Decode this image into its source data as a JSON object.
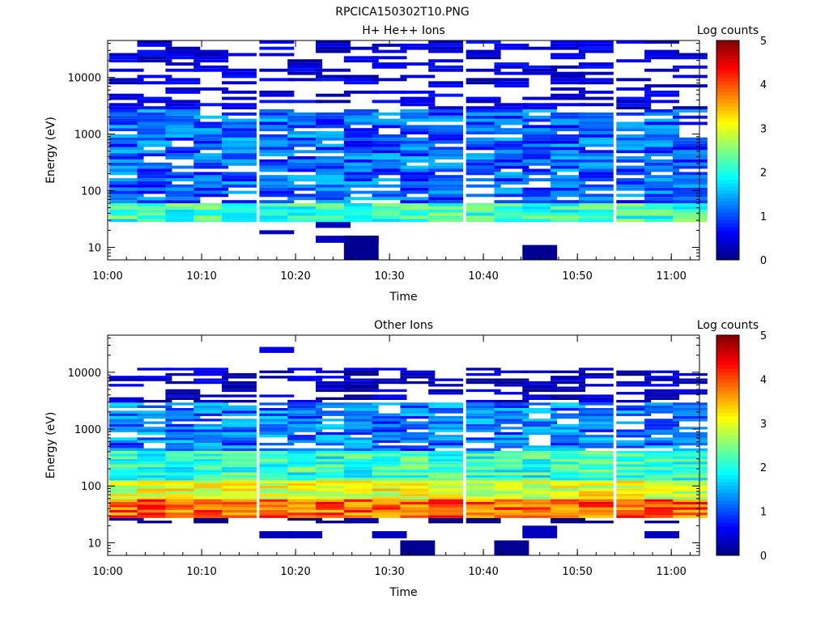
{
  "figure_title": "RPCICA150302T10.PNG",
  "colorscale": [
    "#00007f",
    "#0000ff",
    "#0080ff",
    "#00ffff",
    "#80ff80",
    "#ffff00",
    "#ff8000",
    "#ff0000",
    "#7f0000"
  ],
  "chart_data": [
    {
      "type": "heatmap",
      "title": "H+ He++ Ions",
      "xlabel": "Time",
      "ylabel": "Energy (eV)",
      "colorbar_label": "Log counts",
      "y_scale": "log",
      "xlim": [
        "10:00",
        "11:03"
      ],
      "ylim": [
        6,
        45000
      ],
      "x_ticks": [
        "10:00",
        "10:10",
        "10:20",
        "10:30",
        "10:40",
        "10:50",
        "11:00"
      ],
      "y_ticks": [
        "10",
        "100",
        "1000",
        "10000"
      ],
      "colorbar_range": [
        0,
        5
      ],
      "colorbar_ticks": [
        "0",
        "1",
        "2",
        "3",
        "4",
        "5"
      ],
      "time_bins": [
        "10:02",
        "10:05",
        "10:08",
        "10:11",
        "10:14",
        "10:18",
        "10:21",
        "10:24",
        "10:27",
        "10:30",
        "10:33",
        "10:36",
        "10:40",
        "10:43",
        "10:46",
        "10:49",
        "10:52",
        "10:56",
        "10:59",
        "11:02"
      ],
      "energy_range": [
        28,
        45000
      ],
      "profile": {
        "band_low": [
          28,
          60,
          2.2
        ],
        "band_mid": [
          60,
          2600,
          1.1
        ],
        "sparse_top": [
          2600,
          45000,
          0.45
        ]
      },
      "extra_low_cells": [
        {
          "time": "10:18",
          "e_low": 17,
          "e_high": 20,
          "value": 0.3
        },
        {
          "time": "10:24",
          "e_low": 22,
          "e_high": 28,
          "value": 0.3
        },
        {
          "time": "10:24",
          "e_low": 12,
          "e_high": 16,
          "value": 0.3
        },
        {
          "time": "10:27",
          "e_low": 12,
          "e_high": 16,
          "value": 0.3
        },
        {
          "time": "10:27",
          "e_low": 6,
          "e_high": 16,
          "value": 0.1
        },
        {
          "time": "10:46",
          "e_low": 6,
          "e_high": 11,
          "value": 0.1
        }
      ]
    },
    {
      "type": "heatmap",
      "title": "Other Ions",
      "xlabel": "Time",
      "ylabel": "Energy (eV)",
      "colorbar_label": "Log counts",
      "y_scale": "log",
      "xlim": [
        "10:00",
        "11:03"
      ],
      "ylim": [
        6,
        45000
      ],
      "x_ticks": [
        "10:00",
        "10:10",
        "10:20",
        "10:30",
        "10:40",
        "10:50",
        "11:00"
      ],
      "y_ticks": [
        "10",
        "100",
        "1000",
        "10000"
      ],
      "colorbar_range": [
        0,
        5
      ],
      "colorbar_ticks": [
        "0",
        "1",
        "2",
        "3",
        "4",
        "5"
      ],
      "time_bins": [
        "10:02",
        "10:05",
        "10:08",
        "10:11",
        "10:14",
        "10:18",
        "10:21",
        "10:24",
        "10:27",
        "10:30",
        "10:33",
        "10:36",
        "10:40",
        "10:43",
        "10:46",
        "10:49",
        "10:52",
        "10:56",
        "10:59",
        "11:02"
      ],
      "energy_range": [
        22,
        12000
      ],
      "profile": {
        "peak_band": [
          28,
          60,
          3.9
        ],
        "yellow_band": [
          60,
          130,
          3.0
        ],
        "mid_band": [
          130,
          400,
          2.1
        ],
        "upper_band": [
          400,
          3000,
          1.2
        ],
        "sparse_top": [
          3000,
          12000,
          0.35
        ]
      },
      "extra_low_cells": [
        {
          "time": "10:11",
          "e_low": 22,
          "e_high": 26,
          "value": 0.0
        },
        {
          "time": "10:18",
          "e_low": 12,
          "e_high": 16,
          "value": 0.3
        },
        {
          "time": "10:21",
          "e_low": 12,
          "e_high": 16,
          "value": 0.3
        },
        {
          "time": "10:18",
          "e_low": 22000,
          "e_high": 28000,
          "value": 0.5
        },
        {
          "time": "10:30",
          "e_low": 12,
          "e_high": 16,
          "value": 0.3
        },
        {
          "time": "10:33",
          "e_low": 6,
          "e_high": 11,
          "value": 0.1
        },
        {
          "time": "10:43",
          "e_low": 6,
          "e_high": 11,
          "value": 0.1
        },
        {
          "time": "10:46",
          "e_low": 12,
          "e_high": 20,
          "value": 0.3
        },
        {
          "time": "10:59",
          "e_low": 12,
          "e_high": 16,
          "value": 0.3
        }
      ]
    }
  ]
}
